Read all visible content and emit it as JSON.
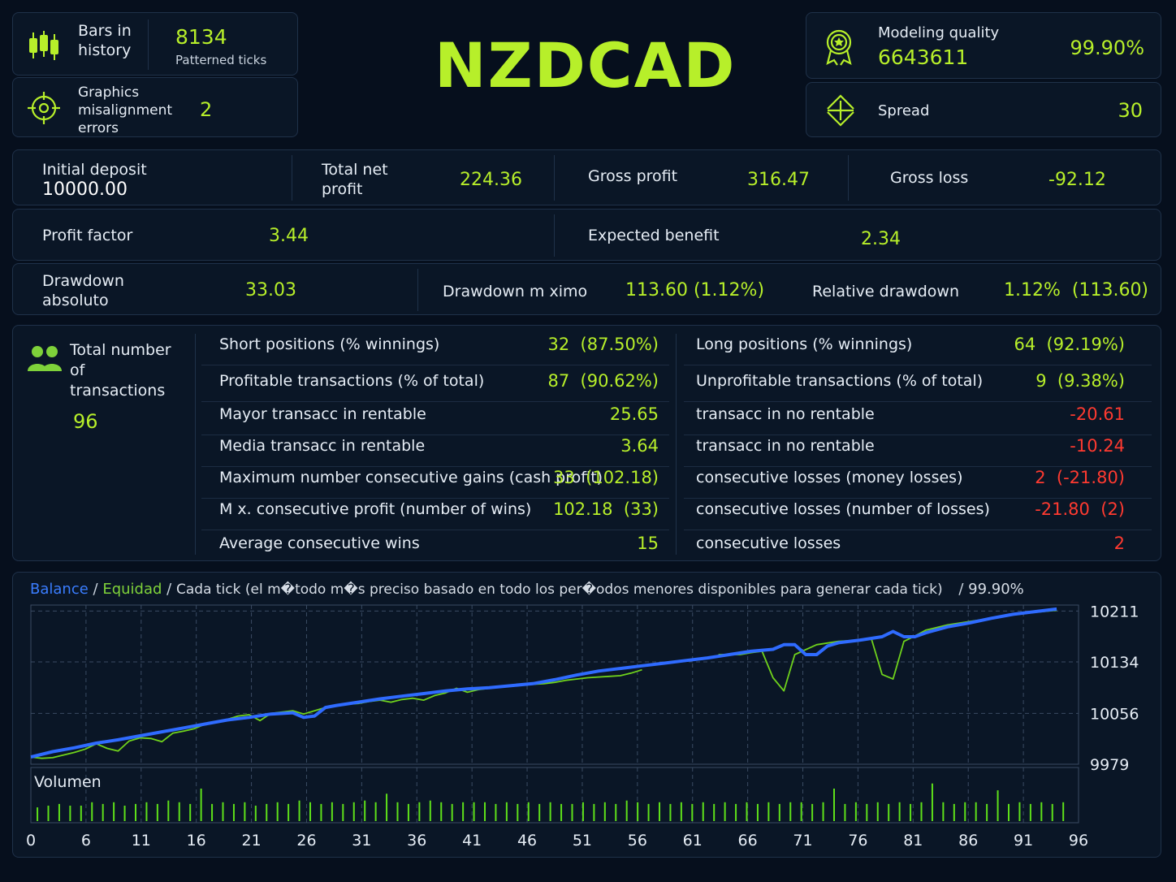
{
  "header": {
    "symbol": "NZDCAD",
    "bars_label": "Bars in history",
    "bars_value": "8134",
    "bars_sub": "Patterned ticks",
    "misalign_label": "Graphics misalignment errors",
    "misalign_value": "2",
    "modeling_label": "Modeling quality",
    "modeling_ticks": "6643611",
    "modeling_value": "99.90%",
    "spread_label": "Spread",
    "spread_value": "30"
  },
  "summary": {
    "initial_deposit_label": "Initial deposit",
    "initial_deposit_value": "10000.00",
    "net_profit_label": "Total net profit",
    "net_profit_value": "224.36",
    "gross_profit_label": "Gross profit",
    "gross_profit_value": "316.47",
    "gross_loss_label": "Gross loss",
    "gross_loss_value": "-92.12",
    "profit_factor_label": "Profit factor",
    "profit_factor_value": "3.44",
    "expected_label": "Expected benefit",
    "expected_value": "2.34",
    "dd_abs_label": "Drawdown absoluto",
    "dd_abs_value": "33.03",
    "dd_max_label": "Drawdown m ximo",
    "dd_max_value": "113.60 (1.12%)",
    "dd_rel_label": "Relative drawdown",
    "dd_rel_value": "1.12%  (113.60)"
  },
  "transactions": {
    "total_label": "Total number of transactions",
    "total_value": "96",
    "left_rows": [
      {
        "label": "Short positions (% winnings)",
        "value": "32  (87.50%)"
      },
      {
        "label": "Profitable transactions (% of total)",
        "value": "87  (90.62%)"
      },
      {
        "label": "Mayor  transacc  in rentable",
        "value": "25.65"
      },
      {
        "label": "Media  transacc  in rentable",
        "value": "3.64"
      },
      {
        "label": "Maximum number  consecutive gains (cash profit)",
        "value": "33  (102.18)"
      },
      {
        "label": "M  x.  consecutive profit (number of wins)",
        "value": "102.18  (33)"
      },
      {
        "label": "Average   consecutive wins",
        "value": "15"
      }
    ],
    "right_rows": [
      {
        "label": "Long positions (% winnings)",
        "value": "64  (92.19%)"
      },
      {
        "label": "Unprofitable transactions (% of total)",
        "value": "9  (9.38%)"
      },
      {
        "label": "transacc  in  no rentable",
        "value": "-20.61"
      },
      {
        "label": "transacc  in  no rentable",
        "value": "-10.24"
      },
      {
        "label": "consecutive losses (money losses)",
        "value": "2  (-21.80)"
      },
      {
        "label": "consecutive losses (number of losses)",
        "value": "-21.80  (2)"
      },
      {
        "label": "consecutive losses",
        "value": "2"
      }
    ]
  },
  "chart_header": {
    "balance": "Balance",
    "sep1": "/",
    "equity": "Equidad",
    "sep2": "/",
    "desc": "Cada tick (el m�todo m�s preciso basado en todo los per�odos menores disponibles para generar cada tick)",
    "sep3": "/",
    "quality": "99.90%"
  },
  "chart_data": {
    "type": "line",
    "ytick_labels": [
      "10211",
      "10134",
      "10056",
      "9979"
    ],
    "ylim": [
      9979,
      10211
    ],
    "xlim": [
      0,
      96
    ],
    "xtick_labels": [
      "0",
      "6",
      "11",
      "16",
      "21",
      "26",
      "31",
      "36",
      "41",
      "46",
      "51",
      "56",
      "61",
      "66",
      "71",
      "76",
      "81",
      "86",
      "91",
      "96"
    ],
    "grid": true,
    "colors": {
      "balance": "#2f6bff",
      "equity": "#6fd21c",
      "volume": "#5ee01a"
    },
    "series": [
      {
        "name": "Balance",
        "x": [
          0,
          2,
          4,
          6,
          8,
          10,
          12,
          14,
          16,
          18,
          20,
          22,
          24,
          25,
          26,
          27,
          28,
          30,
          32,
          34,
          36,
          38,
          40,
          42,
          44,
          46,
          48,
          50,
          52,
          54,
          56,
          58,
          60,
          62,
          64,
          66,
          68,
          69,
          70,
          71,
          72,
          73,
          74,
          76,
          78,
          79,
          80,
          81,
          82,
          84,
          86,
          88,
          90,
          92,
          94
        ],
        "y": [
          9990,
          9998,
          10004,
          10011,
          10016,
          10022,
          10028,
          10034,
          10040,
          10046,
          10050,
          10055,
          10057,
          10050,
          10052,
          10065,
          10068,
          10073,
          10078,
          10082,
          10086,
          10090,
          10093,
          10095,
          10098,
          10101,
          10107,
          10114,
          10120,
          10124,
          10128,
          10132,
          10136,
          10140,
          10145,
          10150,
          10153,
          10160,
          10160,
          10145,
          10145,
          10158,
          10163,
          10167,
          10172,
          10180,
          10172,
          10172,
          10178,
          10187,
          10193,
          10200,
          10206,
          10210,
          10214
        ]
      },
      {
        "name": "Equidad",
        "x": [
          0,
          1,
          2,
          3,
          4,
          5,
          6,
          7,
          8,
          9,
          10,
          11,
          12,
          13,
          14,
          15,
          16,
          17,
          18,
          19,
          20,
          21,
          22,
          23,
          24,
          25,
          26,
          27,
          28,
          29,
          30,
          31,
          32,
          33,
          34,
          35,
          36,
          37,
          38,
          39,
          40,
          41,
          42,
          43,
          44,
          45,
          46,
          47,
          48,
          49,
          50,
          51,
          52,
          53,
          54,
          55,
          56
        ],
        "y": [
          9990,
          9988,
          9989,
          9993,
          9997,
          10002,
          10010,
          10003,
          9999,
          10014,
          10019,
          10018,
          10013,
          10026,
          10029,
          10033,
          10040,
          10043,
          10047,
          10052,
          10054,
          10045,
          10056,
          10058,
          10060,
          10055,
          10060,
          10065,
          10068,
          10070,
          10071,
          10074,
          10076,
          10073,
          10077,
          10079,
          10076,
          10083,
          10087,
          10094,
          10088,
          10092,
          10094,
          10096,
          10098,
          10099,
          10100,
          10101,
          10103,
          10106,
          10108,
          10110,
          10111,
          10112,
          10113,
          10117,
          10122
        ]
      },
      {
        "name": "Equidad",
        "x": [
          63,
          65,
          66,
          67,
          68,
          69,
          70,
          72,
          74,
          76,
          77,
          78,
          79,
          80,
          81,
          82,
          84,
          86,
          88,
          90,
          92,
          94
        ],
        "y": [
          10145,
          10145,
          10148,
          10150,
          10110,
          10090,
          10145,
          10160,
          10165,
          10167,
          10170,
          10115,
          10108,
          10165,
          10173,
          10182,
          10190,
          10195,
          10200,
          10205,
          10209,
          10212
        ]
      }
    ],
    "volume_label": "Volumen",
    "volume": {
      "x": [
        0,
        1,
        2,
        3,
        4,
        5,
        6,
        7,
        8,
        9,
        10,
        11,
        12,
        13,
        14,
        15,
        16,
        17,
        18,
        19,
        20,
        21,
        22,
        23,
        24,
        25,
        26,
        27,
        28,
        29,
        30,
        31,
        32,
        33,
        34,
        35,
        36,
        37,
        38,
        39,
        40,
        41,
        42,
        43,
        44,
        45,
        46,
        47,
        48,
        49,
        50,
        51,
        52,
        53,
        54,
        55,
        56,
        57,
        58,
        59,
        60,
        61,
        62,
        63,
        64,
        65,
        66,
        67,
        68,
        69,
        70,
        71,
        72,
        73,
        74,
        75,
        76,
        77,
        78,
        79,
        80,
        81,
        82,
        83,
        84,
        85,
        86,
        87,
        88,
        89,
        90,
        91,
        92,
        93,
        94
      ],
      "y": [
        0.45,
        0.5,
        0.55,
        0.5,
        0.5,
        0.6,
        0.55,
        0.6,
        0.5,
        0.55,
        0.6,
        0.55,
        0.65,
        0.6,
        0.55,
        1.0,
        0.55,
        0.6,
        0.55,
        0.6,
        0.5,
        0.55,
        0.6,
        0.55,
        0.65,
        0.6,
        0.55,
        0.6,
        0.55,
        0.6,
        0.65,
        0.6,
        0.85,
        0.6,
        0.55,
        0.6,
        0.65,
        0.6,
        0.55,
        0.6,
        0.6,
        0.6,
        0.55,
        0.6,
        0.55,
        0.6,
        0.55,
        0.6,
        0.55,
        0.55,
        0.6,
        0.55,
        0.6,
        0.55,
        0.65,
        0.6,
        0.55,
        0.6,
        0.55,
        0.6,
        0.55,
        0.6,
        0.55,
        0.6,
        0.55,
        0.6,
        0.55,
        0.6,
        0.55,
        0.6,
        0.6,
        0.55,
        0.6,
        1.0,
        0.55,
        0.6,
        0.55,
        0.6,
        0.55,
        0.6,
        0.55,
        0.6,
        1.15,
        0.6,
        0.55,
        0.6,
        0.6,
        0.55,
        0.95,
        0.55,
        0.6,
        0.55,
        0.6,
        0.55,
        0.6
      ]
    }
  }
}
